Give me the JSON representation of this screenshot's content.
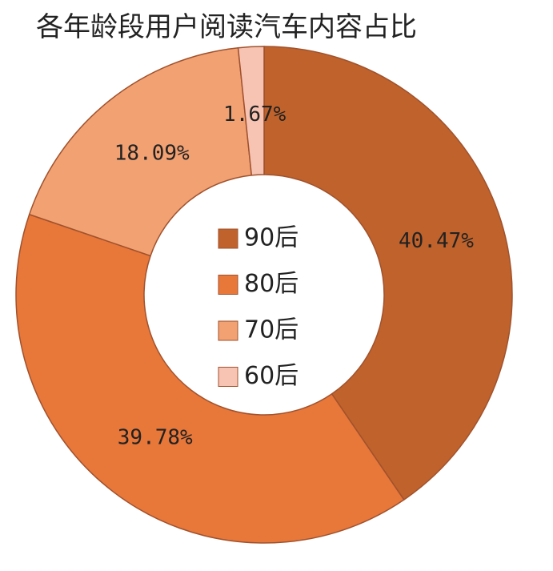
{
  "chart_data": {
    "type": "donut",
    "title": "各年龄段用户阅读汽车内容占比",
    "categories": [
      "90后",
      "80后",
      "70后",
      "60后"
    ],
    "values": [
      40.47,
      39.78,
      18.09,
      1.67
    ],
    "value_labels": [
      "40.47%",
      "39.78%",
      "18.09%",
      "1.67%"
    ],
    "colors": [
      "#c0622b",
      "#e8773a",
      "#f2a172",
      "#f7c3b3"
    ]
  }
}
